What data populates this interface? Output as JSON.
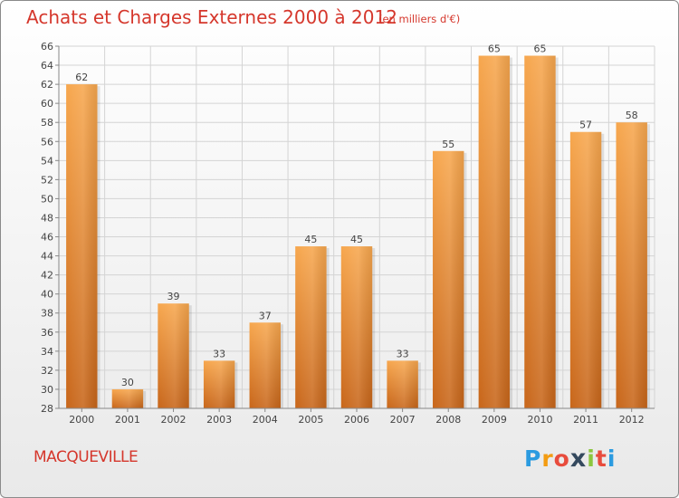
{
  "chart_data": {
    "type": "bar",
    "title": "Achats et Charges Externes 2000 à 2012",
    "subtitle": "(en milliers d'€)",
    "categories": [
      "2000",
      "2001",
      "2002",
      "2003",
      "2004",
      "2005",
      "2006",
      "2007",
      "2008",
      "2009",
      "2010",
      "2011",
      "2012"
    ],
    "values": [
      62,
      30,
      39,
      33,
      37,
      45,
      45,
      33,
      55,
      65,
      65,
      57,
      58
    ],
    "ylim": [
      28,
      66
    ],
    "ytick_step": 2,
    "xlabel": "",
    "ylabel": "",
    "grid": true,
    "bar_color": "#f0942f"
  },
  "footer": {
    "town": "MACQUEVILLE",
    "logo": [
      "P",
      "r",
      "o",
      "x",
      "i",
      "t",
      "i"
    ],
    "logo_colors": [
      "#2b9be0",
      "#f39c12",
      "#e84c3d",
      "#34495e",
      "#8cc63f",
      "#e84c3d",
      "#2b9be0"
    ]
  }
}
